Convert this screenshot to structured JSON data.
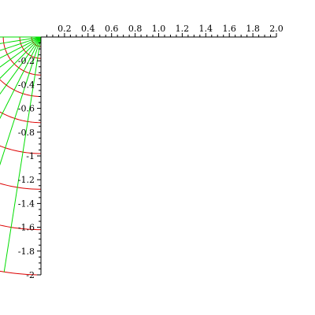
{
  "chart_data": {
    "type": "line",
    "title": "",
    "xlabel": "",
    "ylabel": "",
    "xlim": [
      0,
      2
    ],
    "ylim": [
      -2,
      0
    ],
    "x_ticks": [
      0.2,
      0.4,
      0.6,
      0.8,
      1.0,
      1.2,
      1.4,
      1.6,
      1.8,
      2.0
    ],
    "x_tick_labels": [
      "0.2",
      "0.4",
      "0.6",
      "0.8",
      "1.0",
      "1.2",
      "1.4",
      "1.6",
      "1.8",
      "2.0"
    ],
    "y_ticks": [
      -0.2,
      -0.4,
      -0.6,
      -0.8,
      -1,
      -1.2,
      -1.4,
      -1.6,
      -1.8,
      -2
    ],
    "y_tick_labels": [
      "-0.2",
      "-0.4",
      "-0.6",
      "-0.8",
      "-1",
      "-1.2",
      "-1.4",
      "-1.6",
      "-1.8",
      "-2"
    ],
    "grid": false,
    "legend": "none",
    "mapping": "z^2 on the sector 0 <= r <= sqrt(2), -pi/2 <= theta <= -pi/4 (image of a polar grid)",
    "series": [
      {
        "color": "#dd0000",
        "kind": "circle",
        "radius_values": [
          0.1414,
          0.2828,
          0.4243,
          0.5657,
          0.7071,
          0.8485,
          0.9899,
          1.1314,
          1.2728,
          1.4142
        ]
      },
      {
        "color": "#00dd00",
        "kind": "ray",
        "angle_values_pi": [
          -0.5,
          -0.475,
          -0.45,
          -0.425,
          -0.4,
          -0.375,
          -0.35,
          -0.325,
          -0.3,
          -0.275,
          -0.25
        ]
      }
    ]
  }
}
